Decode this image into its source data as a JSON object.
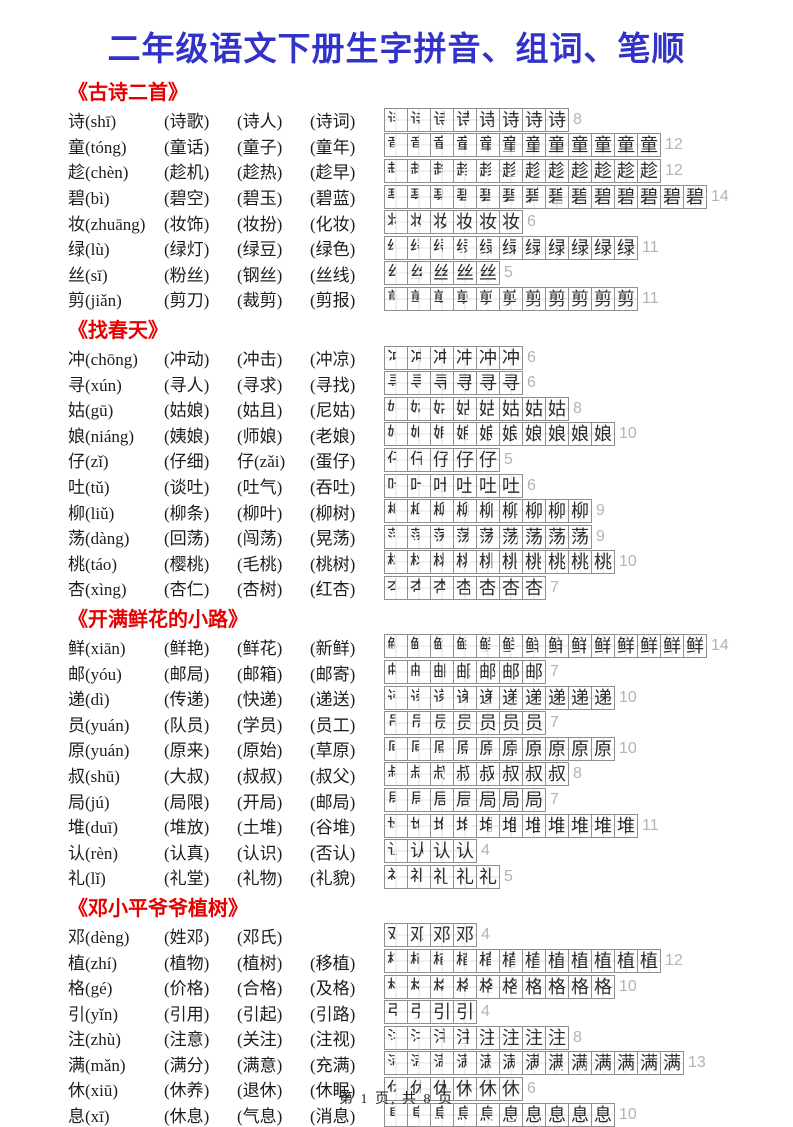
{
  "page": {
    "title": "二年级语文下册生字拼音、组词、笔顺",
    "footer": "第 1 页, 共 8 页"
  },
  "colors": {
    "title": "#3232c8",
    "section": "#e60000",
    "text": "#1c1c1c",
    "stroke_count": "#b3b3b3",
    "box_border": "#8f8f8f"
  },
  "sections": [
    {
      "title": "《古诗二首》",
      "rows": [
        {
          "head": "诗(shī)",
          "character": "诗",
          "words": [
            "(诗歌)",
            "(诗人)",
            "(诗词)"
          ],
          "stroke_count": 8
        },
        {
          "head": "童(tóng)",
          "character": "童",
          "words": [
            "(童话)",
            "(童子)",
            "(童年)"
          ],
          "stroke_count": 12
        },
        {
          "head": "趁(chèn)",
          "character": "趁",
          "words": [
            "(趁机)",
            "(趁热)",
            "(趁早)"
          ],
          "stroke_count": 12
        },
        {
          "head": "碧(bì)",
          "character": "碧",
          "words": [
            "(碧空)",
            "(碧玉)",
            "(碧蓝)"
          ],
          "stroke_count": 14
        },
        {
          "head": "妆(zhuāng)",
          "character": "妆",
          "words": [
            "(妆饰)",
            "(妆扮)",
            "(化妆)"
          ],
          "stroke_count": 6
        },
        {
          "head": "绿(lù)",
          "character": "绿",
          "words": [
            "(绿灯)",
            "(绿豆)",
            "(绿色)"
          ],
          "stroke_count": 11
        },
        {
          "head": "丝(sī)",
          "character": "丝",
          "words": [
            "(粉丝)",
            "(钢丝)",
            "(丝线)"
          ],
          "stroke_count": 5
        },
        {
          "head": "剪(jiǎn)",
          "character": "剪",
          "words": [
            "(剪刀)",
            "(裁剪)",
            "(剪报)"
          ],
          "stroke_count": 11
        }
      ]
    },
    {
      "title": "《找春天》",
      "rows": [
        {
          "head": "冲(chōng)",
          "character": "冲",
          "words": [
            "(冲动)",
            "(冲击)",
            "(冲凉)"
          ],
          "stroke_count": 6
        },
        {
          "head": "寻(xún)",
          "character": "寻",
          "words": [
            "(寻人)",
            "(寻求)",
            "(寻找)"
          ],
          "stroke_count": 6
        },
        {
          "head": "姑(gū)",
          "character": "姑",
          "words": [
            "(姑娘)",
            "(姑且)",
            "(尼姑)"
          ],
          "stroke_count": 8
        },
        {
          "head": "娘(niáng)",
          "character": "娘",
          "words": [
            "(姨娘)",
            "(师娘)",
            "(老娘)"
          ],
          "stroke_count": 10
        },
        {
          "head": "仔(zǐ)",
          "character": "仔",
          "words": [
            "(仔细)",
            "仔(zǎi)",
            "(蛋仔)"
          ],
          "stroke_count": 5
        },
        {
          "head": "吐(tǔ)",
          "character": "吐",
          "words": [
            "(谈吐)",
            "(吐气)",
            "(吞吐)"
          ],
          "stroke_count": 6
        },
        {
          "head": "柳(liǔ)",
          "character": "柳",
          "words": [
            "(柳条)",
            "(柳叶)",
            "(柳树)"
          ],
          "stroke_count": 9
        },
        {
          "head": "荡(dàng)",
          "character": "荡",
          "words": [
            "(回荡)",
            "(闯荡)",
            "(晃荡)"
          ],
          "stroke_count": 9
        },
        {
          "head": "桃(táo)",
          "character": "桃",
          "words": [
            "(樱桃)",
            "(毛桃)",
            "(桃树)"
          ],
          "stroke_count": 10
        },
        {
          "head": "杏(xìng)",
          "character": "杏",
          "words": [
            "(杏仁)",
            "(杏树)",
            "(红杏)"
          ],
          "stroke_count": 7
        }
      ]
    },
    {
      "title": "《开满鲜花的小路》",
      "rows": [
        {
          "head": "鲜(xiān)",
          "character": "鲜",
          "words": [
            "(鲜艳)",
            "(鲜花)",
            "(新鲜)"
          ],
          "stroke_count": 14
        },
        {
          "head": "邮(yóu)",
          "character": "邮",
          "words": [
            "(邮局)",
            "(邮箱)",
            "(邮寄)"
          ],
          "stroke_count": 7
        },
        {
          "head": "递(dì)",
          "character": "递",
          "words": [
            "(传递)",
            "(快递)",
            "(递送)"
          ],
          "stroke_count": 10
        },
        {
          "head": "员(yuán)",
          "character": "员",
          "words": [
            "(队员)",
            "(学员)",
            "(员工)"
          ],
          "stroke_count": 7
        },
        {
          "head": "原(yuán)",
          "character": "原",
          "words": [
            "(原来)",
            "(原始)",
            "(草原)"
          ],
          "stroke_count": 10
        },
        {
          "head": "叔(shū)",
          "character": "叔",
          "words": [
            "(大叔)",
            "(叔叔)",
            "(叔父)"
          ],
          "stroke_count": 8
        },
        {
          "head": "局(jú)",
          "character": "局",
          "words": [
            "(局限)",
            "(开局)",
            "(邮局)"
          ],
          "stroke_count": 7
        },
        {
          "head": "堆(duī)",
          "character": "堆",
          "words": [
            "(堆放)",
            "(土堆)",
            "(谷堆)"
          ],
          "stroke_count": 11
        },
        {
          "head": "认(rèn)",
          "character": "认",
          "words": [
            "(认真)",
            "(认识)",
            "(否认)"
          ],
          "stroke_count": 4
        },
        {
          "head": "礼(lǐ)",
          "character": "礼",
          "words": [
            "(礼堂)",
            "(礼物)",
            "(礼貌)"
          ],
          "stroke_count": 5
        }
      ]
    },
    {
      "title": "《邓小平爷爷植树》",
      "rows": [
        {
          "head": "邓(dèng)",
          "character": "邓",
          "words": [
            "(姓邓)",
            "(邓氏)",
            ""
          ],
          "stroke_count": 4
        },
        {
          "head": "植(zhí)",
          "character": "植",
          "words": [
            "(植物)",
            "(植树)",
            "(移植)"
          ],
          "stroke_count": 12
        },
        {
          "head": "格(gé)",
          "character": "格",
          "words": [
            "(价格)",
            "(合格)",
            "(及格)"
          ],
          "stroke_count": 10
        },
        {
          "head": "引(yǐn)",
          "character": "引",
          "words": [
            "(引用)",
            "(引起)",
            "(引路)"
          ],
          "stroke_count": 4
        },
        {
          "head": "注(zhù)",
          "character": "注",
          "words": [
            "(注意)",
            "(关注)",
            "(注视)"
          ],
          "stroke_count": 8
        },
        {
          "head": "满(mǎn)",
          "character": "满",
          "words": [
            "(满分)",
            "(满意)",
            "(充满)"
          ],
          "stroke_count": 13
        },
        {
          "head": "休(xiū)",
          "character": "休",
          "words": [
            "(休养)",
            "(退休)",
            "(休眠)"
          ],
          "stroke_count": 6
        },
        {
          "head": "息(xī)",
          "character": "息",
          "words": [
            "(休息)",
            "(气息)",
            "(消息)"
          ],
          "stroke_count": 10
        }
      ]
    }
  ]
}
